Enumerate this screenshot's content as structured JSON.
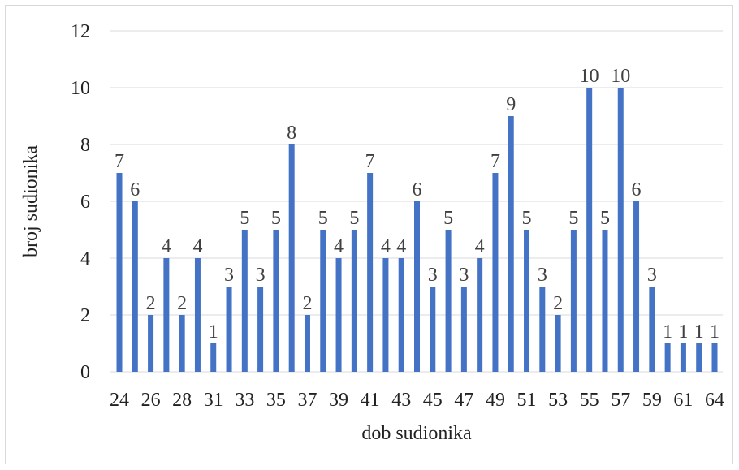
{
  "chart_data": {
    "type": "bar",
    "categories": [
      "24",
      "25",
      "26",
      "27",
      "28",
      "29",
      "31",
      "32",
      "33",
      "34",
      "35",
      "36",
      "37",
      "38",
      "39",
      "40",
      "41",
      "42",
      "43",
      "44",
      "45",
      "46",
      "47",
      "48",
      "49",
      "50",
      "51",
      "52",
      "53",
      "54",
      "55",
      "56",
      "57",
      "58",
      "59",
      "60",
      "61",
      "62",
      "64"
    ],
    "visible_tick_labels": [
      "24",
      "26",
      "28",
      "31",
      "33",
      "35",
      "37",
      "39",
      "41",
      "43",
      "45",
      "47",
      "49",
      "51",
      "53",
      "55",
      "57",
      "59",
      "61",
      "64"
    ],
    "values": [
      7,
      6,
      2,
      4,
      2,
      4,
      1,
      3,
      5,
      3,
      5,
      8,
      2,
      5,
      4,
      5,
      7,
      4,
      4,
      6,
      3,
      5,
      3,
      4,
      7,
      9,
      5,
      3,
      2,
      5,
      10,
      5,
      10,
      6,
      3,
      1,
      1,
      1,
      1
    ],
    "xlabel": "dob sudionika",
    "ylabel": "broj sudionika",
    "ylim": [
      0,
      12
    ],
    "yticks": [
      0,
      2,
      4,
      6,
      8,
      10,
      12
    ],
    "grid": true,
    "bar_color": "#4472c4"
  }
}
